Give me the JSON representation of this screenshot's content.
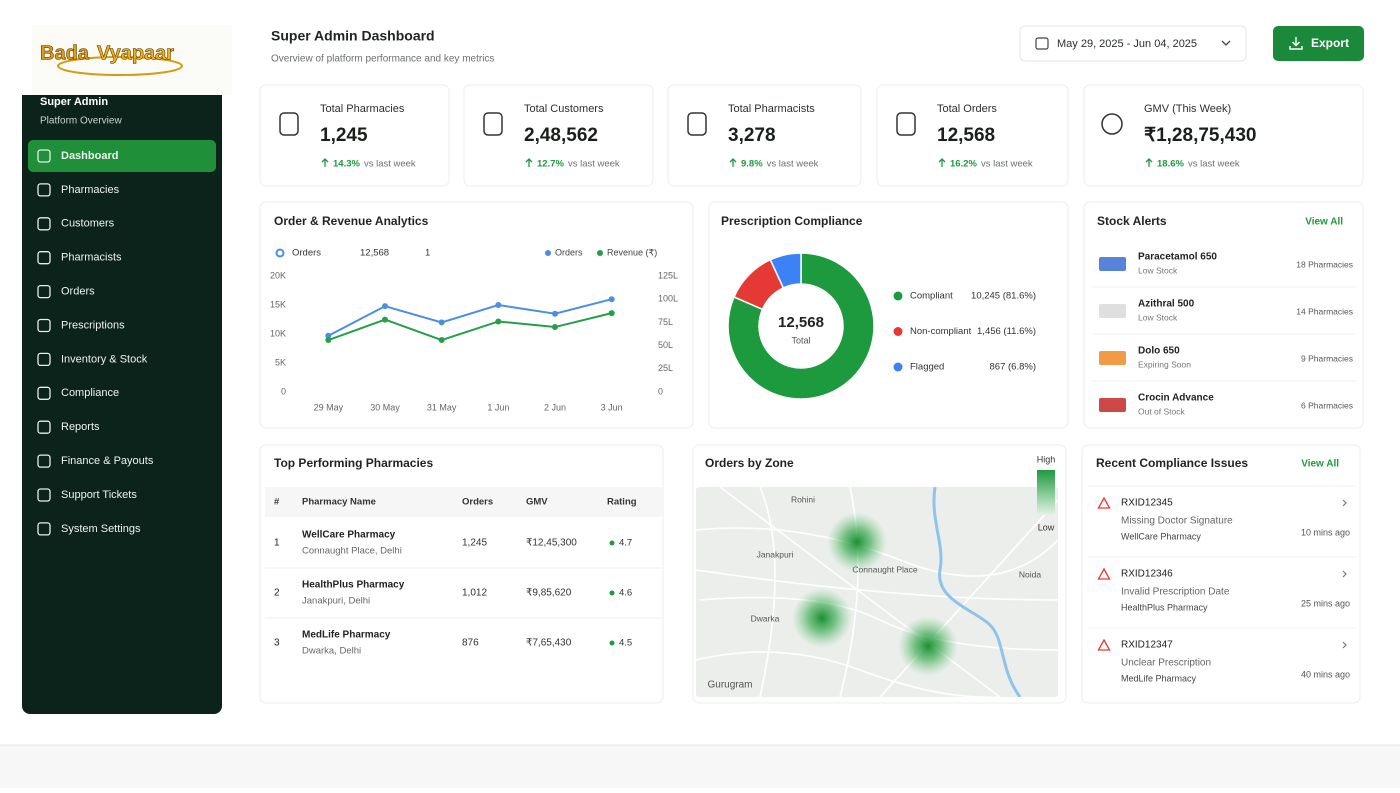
{
  "logo": {
    "part1": "Bada",
    "part2": "Vyapaar"
  },
  "sidebar": {
    "title": "Super Admin",
    "subtitle": "Platform Overview",
    "items": [
      "Dashboard",
      "Pharmacies",
      "Customers",
      "Pharmacists",
      "Orders",
      "Prescriptions",
      "Inventory & Stock",
      "Compliance",
      "Reports",
      "Finance & Payouts",
      "Support Tickets",
      "System Settings"
    ],
    "active": 0
  },
  "header": {
    "title": "Super Admin Dashboard",
    "subtitle": "Overview of platform performance and key metrics",
    "date_range": "May 29, 2025 - Jun 04, 2025",
    "export": "Export"
  },
  "stats": [
    {
      "label": "Total Pharmacies",
      "value": "1,245",
      "change": "14.3%",
      "note": "vs last week"
    },
    {
      "label": "Total Customers",
      "value": "2,48,562",
      "change": "12.7%",
      "note": "vs last week"
    },
    {
      "label": "Total Pharmacists",
      "value": "3,278",
      "change": "9.8%",
      "note": "vs last week"
    },
    {
      "label": "Total Orders",
      "value": "12,568",
      "change": "16.2%",
      "note": "vs last week"
    },
    {
      "label": "GMV (This Week)",
      "value": "₹1,28,75,430",
      "change": "18.6%",
      "note": "vs last week"
    }
  ],
  "analytics": {
    "title": "Order & Revenue Analytics",
    "summary": {
      "label": "Orders",
      "value": "12,568",
      "extra": "1"
    },
    "chart": {
      "type": "line",
      "categories": [
        "29 May",
        "30 May",
        "31 May",
        "1 Jun",
        "2 Jun",
        "3 Jun"
      ],
      "series": [
        {
          "name": "Orders",
          "color": "#4a8fe0",
          "values": [
            9700,
            14800,
            12000,
            15000,
            13500,
            16000
          ]
        },
        {
          "name": "Revenue (₹)",
          "color": "#23a047",
          "axis": "y2",
          "values": [
            56,
            78,
            56,
            76,
            70,
            85
          ]
        }
      ],
      "ylim": [
        0,
        20000
      ],
      "yticks": [
        0,
        {
          "value": 5000,
          "label": "5K"
        },
        {
          "value": 10000,
          "label": "10K"
        },
        {
          "value": 15000,
          "label": "15K"
        },
        {
          "value": 20000,
          "label": "20K"
        }
      ],
      "y2lim": [
        0,
        125
      ],
      "y2ticks": [
        0,
        {
          "value": 25,
          "label": "25L"
        },
        {
          "value": 50,
          "label": "50L"
        },
        {
          "value": 75,
          "label": "75L"
        },
        {
          "value": 100,
          "label": "100L"
        },
        {
          "value": 125,
          "label": "125L"
        }
      ],
      "grid": false
    }
  },
  "compliance": {
    "title": "Prescription Compliance",
    "chart": {
      "type": "pie",
      "center_value": "12,568",
      "center_label": "Total",
      "categories": [
        "Compliant",
        "Non-compliant",
        "Flagged"
      ],
      "values": [
        10245,
        1456,
        867
      ],
      "value_labels": [
        "10,245 (81.6%)",
        "1,456 (11.6%)",
        "867 (6.8%)"
      ],
      "colors": [
        "#1e9a3e",
        "#e53935",
        "#3b82f6"
      ]
    }
  },
  "stock_alerts": {
    "title": "Stock Alerts",
    "action": "View All",
    "items": [
      {
        "name": "Paracetamol 650",
        "status": "Low Stock",
        "count": "18 Pharmacies"
      },
      {
        "name": "Azithral 500",
        "status": "Low Stock",
        "count": "14 Pharmacies"
      },
      {
        "name": "Dolo 650",
        "status": "Expiring Soon",
        "count": "9 Pharmacies"
      },
      {
        "name": "Crocin Advance",
        "status": "Out of Stock",
        "count": "6 Pharmacies"
      }
    ]
  },
  "top_pharmacies": {
    "title": "Top Performing Pharmacies",
    "columns": [
      "#",
      "Pharmacy Name",
      "Orders",
      "GMV",
      "Rating"
    ],
    "rows": [
      {
        "rank": "1",
        "name": "WellCare Pharmacy",
        "location": "Connaught Place, Delhi",
        "orders": "1,245",
        "gmv": "₹12,45,300",
        "rating": "4.7"
      },
      {
        "rank": "2",
        "name": "HealthPlus Pharmacy",
        "location": "Janakpuri, Delhi",
        "orders": "1,012",
        "gmv": "₹9,85,620",
        "rating": "4.6"
      },
      {
        "rank": "3",
        "name": "MedLife Pharmacy",
        "location": "Dwarka, Delhi",
        "orders": "876",
        "gmv": "₹7,65,430",
        "rating": "4.5"
      }
    ]
  },
  "zones": {
    "title": "Orders by Zone",
    "legend_high": "High",
    "legend_low": "Low",
    "places": [
      "Rohini",
      "Janakpuri",
      "Connaught Place",
      "Noida",
      "Dwarka",
      "Gurugram"
    ]
  },
  "issues": {
    "title": "Recent Compliance Issues",
    "action": "View All",
    "items": [
      {
        "id": "RXID12345",
        "issue": "Missing Doctor Signature",
        "pharmacy": "WellCare Pharmacy",
        "time": "10 mins ago"
      },
      {
        "id": "RXID12346",
        "issue": "Invalid Prescription Date",
        "pharmacy": "HealthPlus Pharmacy",
        "time": "25 mins ago"
      },
      {
        "id": "RXID12347",
        "issue": "Unclear Prescription",
        "pharmacy": "MedLife Pharmacy",
        "time": "40 mins ago"
      }
    ]
  }
}
